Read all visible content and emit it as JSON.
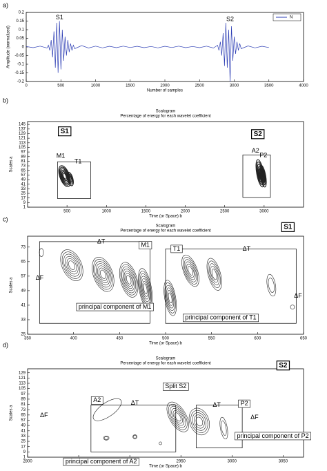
{
  "chart_data": [
    {
      "type": "line",
      "panel_label": "a)",
      "xlabel": "Number of samples",
      "ylabel": "Amplitude (normalized)",
      "x": [
        0,
        100,
        200,
        300,
        320,
        340,
        360,
        380,
        400,
        420,
        440,
        460,
        480,
        500,
        520,
        540,
        560,
        580,
        600,
        620,
        640,
        660,
        680,
        700,
        800,
        900,
        1000,
        1100,
        1200,
        1300,
        1400,
        1500,
        1600,
        1700,
        1800,
        1900,
        2000,
        2100,
        2200,
        2300,
        2400,
        2500,
        2600,
        2700,
        2760,
        2780,
        2800,
        2820,
        2840,
        2860,
        2880,
        2900,
        2920,
        2940,
        2960,
        2980,
        3000,
        3020,
        3040,
        3060,
        3080,
        3100,
        3200,
        3300,
        3400,
        3500
      ],
      "series": [
        {
          "name": "N",
          "color": "#2b3cb4",
          "values": [
            0.003,
            -0.004,
            0.005,
            -0.006,
            0.01,
            -0.02,
            0.04,
            -0.06,
            0.09,
            -0.12,
            0.14,
            -0.15,
            0.15,
            -0.13,
            0.1,
            -0.08,
            0.06,
            -0.05,
            0.04,
            -0.03,
            0.02,
            -0.02,
            0.01,
            -0.01,
            0.008,
            -0.006,
            0.005,
            -0.005,
            0.004,
            -0.004,
            0.005,
            -0.003,
            0.004,
            -0.004,
            0.003,
            -0.005,
            0.004,
            -0.003,
            0.005,
            -0.004,
            0.003,
            -0.004,
            0.005,
            -0.006,
            0.01,
            -0.02,
            0.03,
            -0.05,
            0.08,
            -0.11,
            0.14,
            -0.12,
            0.1,
            -0.2,
            0.12,
            -0.08,
            0.06,
            -0.04,
            0.03,
            -0.02,
            0.02,
            -0.01,
            0.006,
            -0.005,
            0.004,
            -0.003
          ]
        }
      ],
      "xlim": [
        0,
        4000
      ],
      "xticks": [
        0,
        500,
        1000,
        1500,
        2000,
        2500,
        3000,
        3500,
        4000
      ],
      "ylim": [
        -0.2,
        0.2
      ],
      "yticks": [
        -0.2,
        -0.15,
        -0.1,
        -0.05,
        0,
        0.05,
        0.1,
        0.15,
        0.2
      ],
      "legend": "upper right",
      "annotations": [
        "S1",
        "S2"
      ]
    },
    {
      "type": "contour",
      "panel_label": "b)",
      "title": "Scalogram",
      "subtitle": "Percentage of energy for each wavelet coefficient",
      "xlabel": "Time (or Space) b",
      "ylabel": "Scales a",
      "xlim": [
        0,
        3500
      ],
      "xticks": [
        500,
        1000,
        1500,
        2000,
        2500,
        3000
      ],
      "ylim": [
        1,
        150
      ],
      "yticks": [
        1,
        9,
        17,
        25,
        33,
        41,
        49,
        57,
        65,
        73,
        81,
        89,
        97,
        105,
        113,
        121,
        129,
        137,
        145
      ],
      "annotations": [
        "S1",
        "S2",
        "M1",
        "T1",
        "A2",
        "P2"
      ]
    },
    {
      "type": "contour",
      "panel_label": "c)",
      "title": "Scalogram",
      "subtitle": "Percentage of energy for each wavelet coefficient",
      "xlabel": "Time (or Space) b",
      "ylabel": "Scales a",
      "xlim": [
        350,
        650
      ],
      "xticks": [
        350,
        400,
        450,
        500,
        550,
        600,
        650
      ],
      "ylim": [
        25,
        79
      ],
      "yticks": [
        25,
        33,
        41,
        49,
        57,
        65,
        73
      ],
      "annotations": [
        "S1",
        "M1",
        "T1",
        "ΔT",
        "ΔT",
        "ΔF",
        "ΔF",
        "principal component of M1",
        "principal component of T1"
      ]
    },
    {
      "type": "contour",
      "panel_label": "d)",
      "title": "Scalogram",
      "subtitle": "Percentage of energy for each wavelet coefficient",
      "xlabel": "Time (or Space) b",
      "ylabel": "Scales a",
      "xlim": [
        2800,
        3070
      ],
      "xticks": [
        2800,
        2850,
        2900,
        2950,
        3000,
        3050
      ],
      "ylim": [
        1,
        135
      ],
      "yticks": [
        1,
        9,
        17,
        25,
        33,
        41,
        49,
        57,
        65,
        73,
        81,
        89,
        97,
        105,
        113,
        121,
        129
      ],
      "annotations": [
        "S2",
        "A2",
        "P2",
        "ΔT",
        "ΔT",
        "ΔF",
        "ΔF",
        "Split S2",
        "principal component of A2",
        "principal component of P2"
      ]
    }
  ]
}
